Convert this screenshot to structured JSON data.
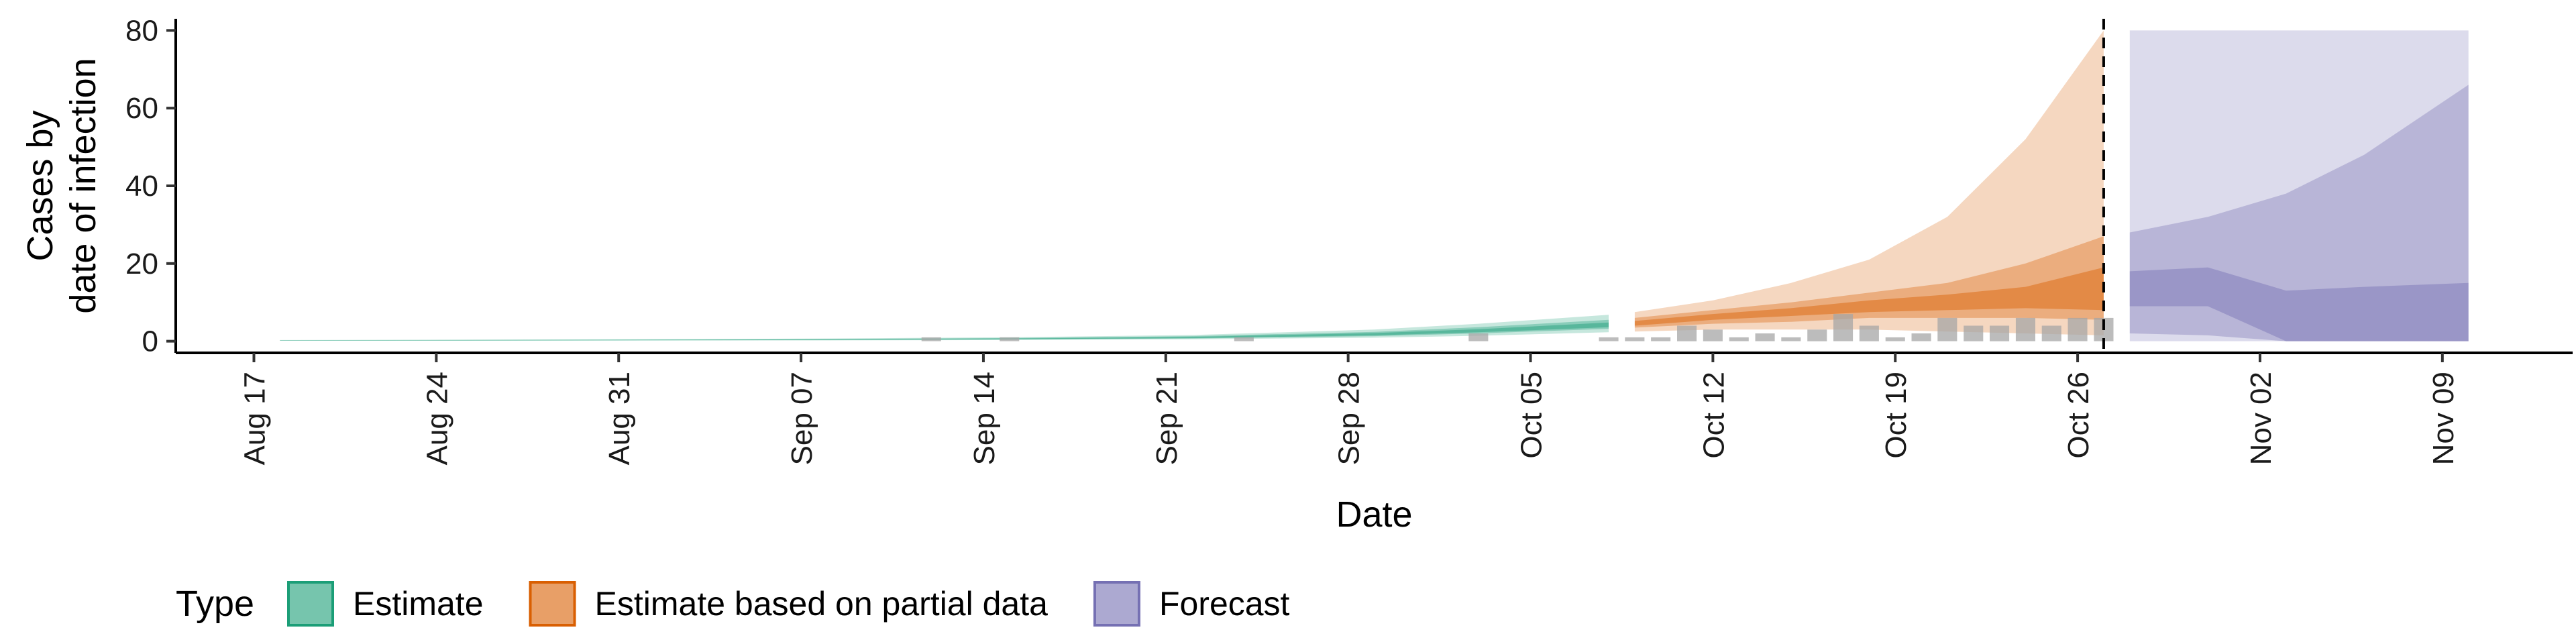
{
  "chart_data": {
    "type": "area",
    "xlabel": "Date",
    "ylabel_lines": [
      "Cases by",
      "date of infection"
    ],
    "x_range": [
      "2020-08-14",
      "2020-11-14"
    ],
    "ylim": [
      -3,
      83
    ],
    "y_ticks": [
      0,
      20,
      40,
      60,
      80
    ],
    "x_ticks": [
      {
        "date": "2020-08-17",
        "label": "Aug 17"
      },
      {
        "date": "2020-08-24",
        "label": "Aug 24"
      },
      {
        "date": "2020-08-31",
        "label": "Aug 31"
      },
      {
        "date": "2020-09-07",
        "label": "Sep 07"
      },
      {
        "date": "2020-09-14",
        "label": "Sep 14"
      },
      {
        "date": "2020-09-21",
        "label": "Sep 21"
      },
      {
        "date": "2020-09-28",
        "label": "Sep 28"
      },
      {
        "date": "2020-10-05",
        "label": "Oct 05"
      },
      {
        "date": "2020-10-12",
        "label": "Oct 12"
      },
      {
        "date": "2020-10-19",
        "label": "Oct 19"
      },
      {
        "date": "2020-10-26",
        "label": "Oct 26"
      },
      {
        "date": "2020-11-02",
        "label": "Nov 02"
      },
      {
        "date": "2020-11-09",
        "label": "Nov 09"
      }
    ],
    "grid": false,
    "legend_position": "bottom-left",
    "legend": {
      "title": "Type",
      "items": [
        {
          "label": "Estimate",
          "color": "#1b9e77"
        },
        {
          "label": "Estimate based on partial data",
          "color": "#d95f02"
        },
        {
          "label": "Forecast",
          "color": "#7570b3"
        }
      ]
    },
    "vline_date": "2020-10-27",
    "reported_cases": [
      {
        "date": "2020-09-12",
        "value": 1
      },
      {
        "date": "2020-09-15",
        "value": 1
      },
      {
        "date": "2020-09-24",
        "value": 1
      },
      {
        "date": "2020-10-03",
        "value": 2
      },
      {
        "date": "2020-10-08",
        "value": 1
      },
      {
        "date": "2020-10-09",
        "value": 1
      },
      {
        "date": "2020-10-10",
        "value": 1
      },
      {
        "date": "2020-10-11",
        "value": 4
      },
      {
        "date": "2020-10-12",
        "value": 3
      },
      {
        "date": "2020-10-13",
        "value": 1
      },
      {
        "date": "2020-10-14",
        "value": 2
      },
      {
        "date": "2020-10-15",
        "value": 1
      },
      {
        "date": "2020-10-16",
        "value": 3
      },
      {
        "date": "2020-10-17",
        "value": 7
      },
      {
        "date": "2020-10-18",
        "value": 4
      },
      {
        "date": "2020-10-19",
        "value": 1
      },
      {
        "date": "2020-10-20",
        "value": 2
      },
      {
        "date": "2020-10-21",
        "value": 6
      },
      {
        "date": "2020-10-22",
        "value": 4
      },
      {
        "date": "2020-10-23",
        "value": 4
      },
      {
        "date": "2020-10-24",
        "value": 6
      },
      {
        "date": "2020-10-25",
        "value": 4
      },
      {
        "date": "2020-10-26",
        "value": 6
      },
      {
        "date": "2020-10-27",
        "value": 6
      }
    ],
    "series": [
      {
        "name": "Estimate",
        "color": "#1b9e77",
        "points": [
          {
            "date": "2020-08-18",
            "outer": [
              0.1,
              0.3
            ],
            "mid": [
              0.15,
              0.25
            ],
            "inner": [
              0.18,
              0.22
            ]
          },
          {
            "date": "2020-08-25",
            "outer": [
              0.1,
              0.4
            ],
            "mid": [
              0.2,
              0.3
            ],
            "inner": [
              0.22,
              0.28
            ]
          },
          {
            "date": "2020-09-01",
            "outer": [
              0.15,
              0.5
            ],
            "mid": [
              0.25,
              0.4
            ],
            "inner": [
              0.28,
              0.36
            ]
          },
          {
            "date": "2020-09-08",
            "outer": [
              0.2,
              0.7
            ],
            "mid": [
              0.3,
              0.55
            ],
            "inner": [
              0.35,
              0.5
            ]
          },
          {
            "date": "2020-09-15",
            "outer": [
              0.3,
              1.0
            ],
            "mid": [
              0.45,
              0.8
            ],
            "inner": [
              0.5,
              0.7
            ]
          },
          {
            "date": "2020-09-22",
            "outer": [
              0.5,
              1.6
            ],
            "mid": [
              0.7,
              1.3
            ],
            "inner": [
              0.8,
              1.1
            ]
          },
          {
            "date": "2020-09-29",
            "outer": [
              0.9,
              3.0
            ],
            "mid": [
              1.3,
              2.4
            ],
            "inner": [
              1.5,
              2.1
            ]
          },
          {
            "date": "2020-10-03",
            "outer": [
              1.4,
              4.5
            ],
            "mid": [
              2.0,
              3.6
            ],
            "inner": [
              2.3,
              3.1
            ]
          },
          {
            "date": "2020-10-08",
            "outer": [
              2.3,
              6.8
            ],
            "mid": [
              3.2,
              5.5
            ],
            "inner": [
              3.6,
              4.8
            ]
          }
        ]
      },
      {
        "name": "Estimate based on partial data",
        "color": "#d95f02",
        "points": [
          {
            "date": "2020-10-09",
            "outer": [
              2.5,
              7.5
            ],
            "mid": [
              3.5,
              6.0
            ],
            "inner": [
              4.0,
              5.2
            ]
          },
          {
            "date": "2020-10-12",
            "outer": [
              3.0,
              10.5
            ],
            "mid": [
              4.5,
              8.0
            ],
            "inner": [
              5.5,
              7.0
            ]
          },
          {
            "date": "2020-10-15",
            "outer": [
              3.0,
              15
            ],
            "mid": [
              5.0,
              10.0
            ],
            "inner": [
              6.5,
              8.5
            ]
          },
          {
            "date": "2020-10-18",
            "outer": [
              3.0,
              21
            ],
            "mid": [
              6.0,
              12.5
            ],
            "inner": [
              7.5,
              10.5
            ]
          },
          {
            "date": "2020-10-21",
            "outer": [
              2.5,
              32
            ],
            "mid": [
              6.0,
              15.0
            ],
            "inner": [
              8.0,
              12.0
            ]
          },
          {
            "date": "2020-10-24",
            "outer": [
              2.0,
              52
            ],
            "mid": [
              6.0,
              20.0
            ],
            "inner": [
              8.5,
              14.0
            ]
          },
          {
            "date": "2020-10-27",
            "outer": [
              1.5,
              80
            ],
            "mid": [
              5.5,
              27
            ],
            "inner": [
              8.0,
              19
            ]
          }
        ]
      },
      {
        "name": "Forecast",
        "color": "#7570b3",
        "points": [
          {
            "date": "2020-10-28",
            "outer": [
              0,
              80
            ],
            "mid": [
              2.0,
              28
            ],
            "inner": [
              9.0,
              18
            ]
          },
          {
            "date": "2020-10-31",
            "outer": [
              0,
              80
            ],
            "mid": [
              1.5,
              32
            ],
            "inner": [
              9.0,
              19
            ]
          },
          {
            "date": "2020-11-03",
            "outer": [
              0,
              80
            ],
            "mid": [
              0,
              38
            ],
            "inner": [
              0,
              13
            ]
          },
          {
            "date": "2020-11-06",
            "outer": [
              0,
              80
            ],
            "mid": [
              0,
              48
            ],
            "inner": [
              0,
              14
            ]
          },
          {
            "date": "2020-11-10",
            "outer": [
              0,
              80
            ],
            "mid": [
              0,
              66
            ],
            "inner": [
              0,
              15
            ]
          }
        ]
      }
    ]
  }
}
